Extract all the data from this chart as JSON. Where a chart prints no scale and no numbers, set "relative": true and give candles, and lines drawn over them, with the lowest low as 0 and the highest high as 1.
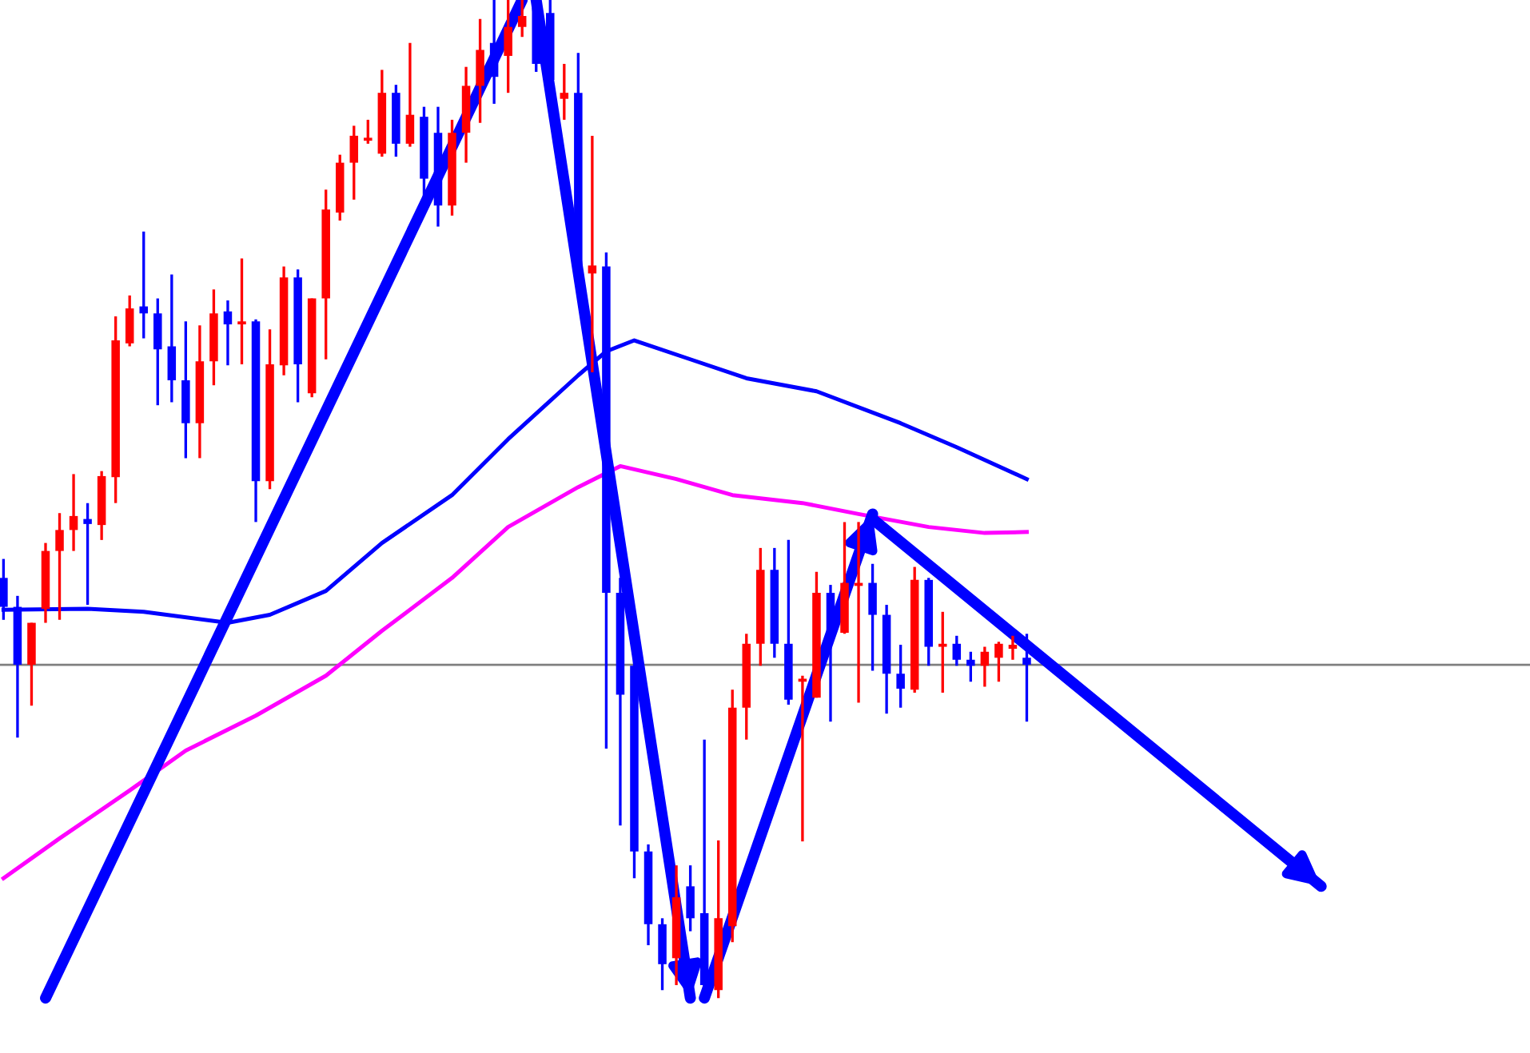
{
  "chart_data": {
    "type": "candlestick",
    "relative": true,
    "categories": [
      null,
      null,
      null,
      null,
      null,
      null,
      null,
      null,
      null,
      null,
      null,
      null,
      null,
      null,
      null,
      null,
      null,
      null,
      null,
      null,
      null,
      null,
      null,
      null,
      null,
      null,
      null,
      null,
      null,
      null,
      null,
      null,
      null,
      null,
      null,
      null,
      null,
      null,
      null,
      null,
      null,
      null,
      null,
      null,
      null,
      null,
      null,
      null,
      null,
      null,
      null,
      null,
      null,
      null,
      null,
      null,
      null,
      null,
      null,
      null,
      null,
      null,
      null,
      null,
      null,
      null,
      null,
      null,
      null,
      null,
      null,
      null,
      null,
      null,
      null,
      null,
      null,
      null,
      null,
      null,
      null,
      null,
      null,
      null,
      null,
      null,
      null,
      null,
      null,
      null,
      null,
      null,
      null,
      null,
      null,
      null,
      null,
      null,
      null,
      null,
      null,
      null,
      null,
      null,
      null,
      null,
      null,
      null,
      null
    ],
    "colors": [
      "#0000ff",
      "#0000ff",
      "#ff0000",
      "#ff0000",
      "#ff0000",
      "#ff0000",
      "#0000ff",
      "#ff0000",
      "#ff0000",
      "#ff0000",
      "#0000ff",
      "#0000ff",
      "#0000ff",
      "#0000ff",
      "#ff0000",
      "#ff0000",
      "#0000ff",
      "#ff0000",
      "#0000ff",
      "#ff0000",
      "#ff0000",
      "#0000ff",
      "#ff0000",
      "#ff0000",
      "#ff0000",
      "#ff0000",
      "#ff0000",
      "#ff0000",
      "#0000ff",
      "#ff0000",
      "#0000ff",
      "#0000ff",
      "#ff0000",
      "#ff0000",
      "#ff0000",
      "#0000ff",
      "#ff0000",
      "#ff0000",
      "#0000ff",
      "#0000ff",
      "#ff0000",
      "#0000ff",
      "#ff0000",
      "#0000ff",
      "#0000ff",
      "#0000ff",
      "#0000ff",
      "#0000ff",
      "#ff0000",
      "#0000ff",
      "#0000ff",
      "#ff0000",
      "#ff0000",
      "#ff0000",
      "#ff0000",
      "#0000ff",
      "#0000ff",
      "#ff0000",
      "#ff0000",
      "#0000ff",
      "#ff0000",
      "#ff0000",
      "#0000ff",
      "#0000ff",
      "#0000ff",
      "#ff0000",
      "#0000ff",
      "#ff0000",
      "#0000ff",
      "#0000ff",
      "#ff0000",
      "#ff0000",
      "#ff0000",
      "#0000ff",
      null,
      null,
      null,
      null,
      null,
      null,
      null,
      null,
      null,
      null,
      null,
      null,
      null,
      null,
      null,
      null,
      null,
      null,
      null,
      null,
      null,
      null,
      null,
      null,
      null,
      null,
      null,
      null,
      null,
      null,
      null,
      null,
      null,
      null,
      null
    ],
    "ohlc": [
      [
        0.421,
        0.44,
        0.379,
        0.392
      ],
      [
        0.392,
        0.403,
        0.261,
        0.334
      ],
      [
        0.334,
        0.376,
        0.293,
        0.376
      ],
      [
        0.39,
        0.456,
        0.376,
        0.448
      ],
      [
        0.448,
        0.486,
        0.379,
        0.469
      ],
      [
        0.469,
        0.525,
        0.448,
        0.483
      ],
      [
        0.48,
        0.496,
        0.394,
        0.475
      ],
      [
        0.474,
        0.528,
        0.459,
        0.523
      ],
      [
        0.522,
        0.683,
        0.496,
        0.659
      ],
      [
        0.656,
        0.704,
        0.653,
        0.691
      ],
      [
        0.693,
        0.768,
        0.661,
        0.686
      ],
      [
        0.686,
        0.701,
        0.594,
        0.65
      ],
      [
        0.653,
        0.725,
        0.597,
        0.619
      ],
      [
        0.619,
        0.678,
        0.541,
        0.576
      ],
      [
        0.576,
        0.674,
        0.541,
        0.638
      ],
      [
        0.638,
        0.71,
        0.614,
        0.686
      ],
      [
        0.688,
        0.699,
        0.634,
        0.675
      ],
      [
        0.675,
        0.741,
        0.635,
        0.678
      ],
      [
        0.678,
        0.68,
        0.477,
        0.518
      ],
      [
        0.518,
        0.67,
        0.51,
        0.635
      ],
      [
        0.634,
        0.733,
        0.624,
        0.722
      ],
      [
        0.722,
        0.73,
        0.597,
        0.635
      ],
      [
        0.606,
        0.701,
        0.602,
        0.701
      ],
      [
        0.701,
        0.81,
        0.64,
        0.79
      ],
      [
        0.787,
        0.845,
        0.779,
        0.837
      ],
      [
        0.837,
        0.874,
        0.8,
        0.864
      ],
      [
        0.859,
        0.88,
        0.856,
        0.862
      ],
      [
        0.846,
        0.93,
        0.843,
        0.907
      ],
      [
        0.907,
        0.915,
        0.843,
        0.856
      ],
      [
        0.856,
        0.957,
        0.853,
        0.885
      ],
      [
        0.883,
        0.893,
        0.8,
        0.821
      ],
      [
        0.867,
        0.893,
        0.773,
        0.794
      ],
      [
        0.794,
        0.88,
        0.784,
        0.867
      ],
      [
        0.867,
        0.933,
        0.837,
        0.914
      ],
      [
        0.914,
        0.981,
        0.877,
        0.95
      ],
      [
        0.957,
        1.0,
        0.896,
        0.923
      ],
      [
        0.944,
        1.0,
        0.907,
        0.973
      ],
      [
        0.973,
        1.0,
        0.963,
        0.984
      ],
      [
        0.992,
        1.0,
        0.928,
        0.936
      ],
      [
        0.987,
        1.0,
        0.912,
        0.92
      ],
      [
        0.901,
        0.936,
        0.88,
        0.907
      ],
      [
        0.907,
        0.947,
        0.72,
        0.733
      ],
      [
        0.726,
        0.864,
        0.627,
        0.734
      ],
      [
        0.733,
        0.747,
        0.25,
        0.406
      ],
      [
        0.406,
        0.421,
        0.173,
        0.304
      ],
      [
        0.333,
        0.341,
        0.12,
        0.147
      ],
      [
        0.147,
        0.154,
        0.053,
        0.074
      ],
      [
        0.074,
        0.08,
        0.008,
        0.034
      ],
      [
        0.04,
        0.133,
        0.013,
        0.101
      ],
      [
        0.112,
        0.133,
        0.067,
        0.08
      ],
      [
        0.085,
        0.259,
        0.008,
        0.013
      ],
      [
        0.008,
        0.158,
        0.0,
        0.08
      ],
      [
        0.072,
        0.309,
        0.056,
        0.291
      ],
      [
        0.291,
        0.365,
        0.259,
        0.355
      ],
      [
        0.355,
        0.451,
        0.333,
        0.429
      ],
      [
        0.429,
        0.451,
        0.341,
        0.355
      ],
      [
        0.355,
        0.459,
        0.294,
        0.299
      ],
      [
        0.317,
        0.323,
        0.157,
        0.32
      ],
      [
        0.301,
        0.427,
        0.301,
        0.406
      ],
      [
        0.406,
        0.414,
        0.277,
        0.368
      ],
      [
        0.366,
        0.477,
        0.365,
        0.416
      ],
      [
        0.413,
        0.477,
        0.296,
        0.416
      ],
      [
        0.416,
        0.435,
        0.328,
        0.384
      ],
      [
        0.384,
        0.394,
        0.285,
        0.325
      ],
      [
        0.325,
        0.354,
        0.291,
        0.31
      ],
      [
        0.309,
        0.432,
        0.306,
        0.419
      ],
      [
        0.419,
        0.421,
        0.333,
        0.352
      ],
      [
        0.352,
        0.387,
        0.306,
        0.355
      ],
      [
        0.355,
        0.363,
        0.333,
        0.339
      ],
      [
        0.339,
        0.347,
        0.317,
        0.333
      ],
      [
        0.333,
        0.352,
        0.312,
        0.347
      ],
      [
        0.341,
        0.357,
        0.317,
        0.355
      ],
      [
        0.35,
        0.363,
        0.339,
        0.354
      ],
      [
        0.341,
        0.365,
        0.277,
        0.334
      ],
      null,
      null,
      null,
      null,
      null,
      null,
      null,
      null,
      null,
      null,
      null,
      null,
      null,
      null,
      null,
      null,
      null,
      null,
      null,
      null,
      null,
      null,
      null,
      null,
      null,
      null,
      null,
      null,
      null,
      null,
      null,
      null,
      null,
      null,
      null
    ],
    "series": [
      {
        "type": "line",
        "color": "#0000ff",
        "values": [
          0.389,
          null,
          null,
          null,
          null,
          null,
          0.39,
          null,
          null,
          null,
          0.387,
          null,
          null,
          null,
          null,
          null,
          0.376,
          null,
          null,
          0.384,
          null,
          null,
          null,
          0.408,
          null,
          null,
          null,
          0.456,
          null,
          null,
          null,
          null,
          0.504,
          null,
          null,
          null,
          0.56,
          null,
          null,
          null,
          null,
          0.624,
          null,
          0.648,
          null,
          0.659,
          null,
          null,
          null,
          0.64,
          null,
          null,
          null,
          0.621,
          null,
          null,
          null,
          null,
          0.608,
          null,
          null,
          null,
          null,
          null,
          0.576,
          null,
          null,
          null,
          0.552,
          null,
          null,
          null,
          null,
          0.52,
          null,
          null,
          null,
          null,
          null,
          null,
          null,
          null,
          null,
          null,
          null,
          null,
          null,
          null,
          null,
          null,
          null,
          null,
          null,
          null,
          null,
          null,
          null,
          null,
          null,
          null,
          null,
          null,
          null,
          null,
          null,
          null,
          null,
          null,
          null
        ]
      },
      {
        "type": "line",
        "color": "#ff00ff",
        "values": [
          0.12,
          null,
          null,
          null,
          0.16,
          null,
          null,
          null,
          null,
          0.208,
          null,
          null,
          null,
          0.248,
          null,
          null,
          null,
          null,
          0.283,
          null,
          null,
          null,
          null,
          0.323,
          null,
          null,
          null,
          0.368,
          null,
          null,
          null,
          null,
          0.421,
          null,
          null,
          null,
          0.472,
          null,
          null,
          null,
          null,
          0.512,
          null,
          null,
          0.533,
          null,
          null,
          null,
          0.52,
          null,
          null,
          null,
          0.504,
          null,
          null,
          null,
          null,
          0.496,
          null,
          null,
          null,
          0.485,
          null,
          null,
          null,
          null,
          0.472,
          null,
          null,
          null,
          0.466,
          null,
          null,
          0.467,
          null,
          null,
          null,
          null,
          null,
          null,
          null,
          null,
          null,
          null,
          null,
          null,
          null,
          null,
          null,
          null,
          null,
          null,
          null,
          null,
          null,
          null,
          null,
          null,
          null,
          null,
          null,
          null,
          null,
          null,
          null,
          null,
          null,
          null,
          null
        ]
      },
      {
        "type": "line",
        "color": "#0000ff",
        "values": [
          null,
          null,
          null,
          0.0,
          null,
          null,
          null,
          null,
          null,
          null,
          null,
          null,
          null,
          null,
          null,
          null,
          null,
          null,
          null,
          null,
          null,
          null,
          null,
          null,
          null,
          null,
          null,
          null,
          null,
          null,
          null,
          null,
          null,
          null,
          null,
          null,
          null,
          1.0,
          null,
          null,
          null,
          null,
          null,
          null,
          null,
          null,
          null,
          null,
          null,
          null,
          null,
          null,
          null,
          null,
          null,
          null,
          null,
          null,
          null,
          null,
          null,
          null,
          null,
          null,
          null,
          null,
          null,
          null,
          null,
          null,
          null,
          null,
          null,
          null,
          null,
          null,
          null,
          null,
          null,
          null,
          null,
          null,
          null,
          null,
          null,
          null,
          null,
          null,
          null,
          null,
          null,
          null,
          null,
          null,
          null,
          null,
          null,
          null,
          null,
          null,
          null,
          null,
          null,
          null,
          null,
          null,
          null,
          null,
          null
        ]
      },
      {
        "type": "line",
        "color": "#0000ff",
        "values": [
          null,
          null,
          null,
          null,
          null,
          null,
          null,
          null,
          null,
          null,
          null,
          null,
          null,
          null,
          null,
          null,
          null,
          null,
          null,
          null,
          null,
          null,
          null,
          null,
          null,
          null,
          null,
          null,
          null,
          null,
          null,
          null,
          null,
          null,
          null,
          null,
          null,
          null,
          1.0,
          null,
          null,
          null,
          null,
          null,
          null,
          null,
          null,
          null,
          null,
          0.0,
          null,
          null,
          null,
          null,
          null,
          null,
          null,
          null,
          null,
          null,
          null,
          null,
          null,
          null,
          null,
          null,
          null,
          null,
          null,
          null,
          null,
          null,
          null,
          null,
          null,
          null,
          null,
          null,
          null,
          null,
          null,
          null,
          null,
          null,
          null,
          null,
          null,
          null,
          null,
          null,
          null,
          null,
          null,
          null,
          null,
          null,
          null,
          null,
          null,
          null,
          null,
          null,
          null,
          null,
          null,
          null,
          null,
          null,
          null
        ]
      },
      {
        "type": "line",
        "color": "#0000ff",
        "values": [
          null,
          null,
          null,
          null,
          null,
          null,
          null,
          null,
          null,
          null,
          null,
          null,
          null,
          null,
          null,
          null,
          null,
          null,
          null,
          null,
          null,
          null,
          null,
          null,
          null,
          null,
          null,
          null,
          null,
          null,
          null,
          null,
          null,
          null,
          null,
          null,
          null,
          null,
          null,
          null,
          null,
          null,
          null,
          null,
          null,
          null,
          null,
          null,
          null,
          null,
          0.0,
          null,
          null,
          null,
          null,
          null,
          null,
          null,
          null,
          null,
          null,
          null,
          0.485,
          null,
          null,
          null,
          null,
          null,
          null,
          null,
          null,
          null,
          null,
          null,
          null,
          null,
          null,
          null,
          null,
          null,
          null,
          null,
          null,
          null,
          null,
          null,
          null,
          null,
          null,
          null,
          null,
          null,
          null,
          null,
          null,
          null,
          null,
          null,
          null,
          null,
          null,
          null,
          null,
          null,
          null,
          null,
          null,
          null,
          null
        ]
      },
      {
        "type": "line",
        "color": "#0000ff",
        "values": [
          null,
          null,
          null,
          null,
          null,
          null,
          null,
          null,
          null,
          null,
          null,
          null,
          null,
          null,
          null,
          null,
          null,
          null,
          null,
          null,
          null,
          null,
          null,
          null,
          null,
          null,
          null,
          null,
          null,
          null,
          null,
          null,
          null,
          null,
          null,
          null,
          null,
          null,
          null,
          null,
          null,
          null,
          null,
          null,
          null,
          null,
          null,
          null,
          null,
          null,
          null,
          null,
          null,
          null,
          null,
          null,
          null,
          null,
          null,
          null,
          null,
          null,
          0.48,
          null,
          null,
          null,
          null,
          null,
          null,
          null,
          null,
          null,
          null,
          null,
          null,
          null,
          null,
          null,
          null,
          null,
          null,
          null,
          null,
          null,
          null,
          null,
          null,
          null,
          null,
          null,
          null,
          null,
          null,
          null,
          0.112,
          null,
          null,
          null,
          null,
          null,
          null,
          null,
          null,
          null,
          null,
          null,
          null,
          null,
          null
        ]
      }
    ],
    "ref_lines": [
      {
        "axis": "y",
        "value": 0.334,
        "color": "#808080"
      }
    ]
  }
}
